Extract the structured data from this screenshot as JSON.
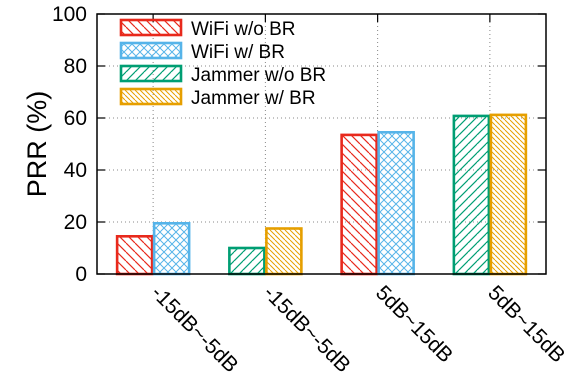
{
  "chart_data": {
    "type": "bar",
    "ylabel": "PRR (%)",
    "xlabel": "",
    "ylim": [
      0,
      100
    ],
    "yticks": [
      0,
      20,
      40,
      60,
      80,
      100
    ],
    "grid": "dotted, both axes",
    "legend_placement": "top-left",
    "categories": [
      "-15dB~-5dB",
      "-15dB~-5dB",
      "5dB~15dB",
      "5dB~15dB"
    ],
    "series": [
      {
        "name": "WiFi w/o BR",
        "color": "#e8291c",
        "pattern": "diagonal-back",
        "values": [
          14.5,
          null,
          53.5,
          null
        ]
      },
      {
        "name": "WiFi w/ BR",
        "color": "#56b4e9",
        "pattern": "crosshatch",
        "values": [
          19.5,
          null,
          54.5,
          null
        ]
      },
      {
        "name": "Jammer w/o BR",
        "color": "#009e73",
        "pattern": "diagonal-forward",
        "values": [
          null,
          10.0,
          null,
          60.8
        ]
      },
      {
        "name": "Jammer w/ BR",
        "color": "#e69f00",
        "pattern": "dense-back",
        "values": [
          null,
          17.5,
          null,
          61.2
        ]
      }
    ]
  }
}
